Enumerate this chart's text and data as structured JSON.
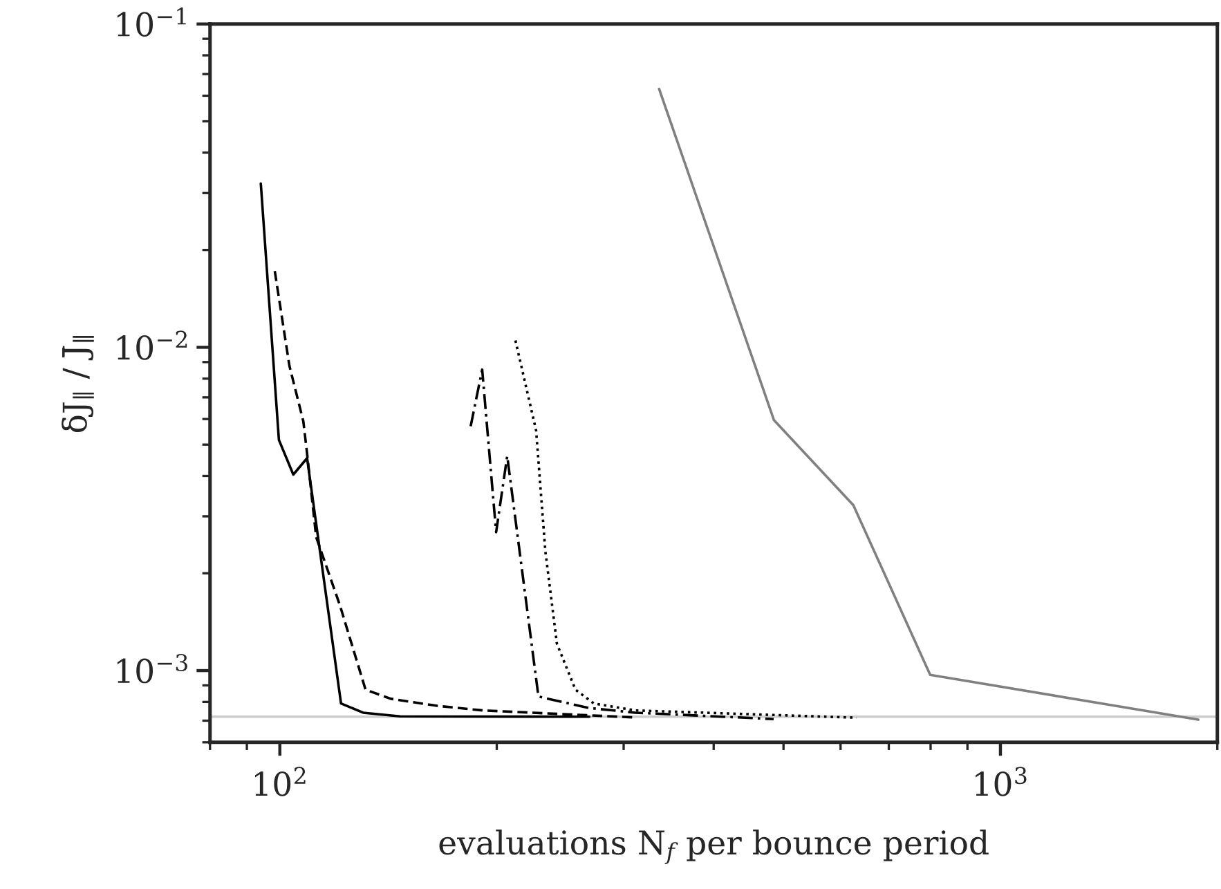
{
  "chart_data": {
    "type": "line",
    "log": "xy",
    "grid": false,
    "legend": false,
    "xlabel": "evaluations N$_{f}$ per bounce period",
    "ylabel": "δJ$_{∥}$ / J̄$_{∥}$",
    "xlim": [
      80,
      2000
    ],
    "ylim": [
      0.0006,
      0.1
    ],
    "xticks": [
      {
        "value": 100,
        "label": "10$^{2}$"
      },
      {
        "value": 1000,
        "label": "10$^{3}$"
      }
    ],
    "yticks": [
      {
        "value": 0.001,
        "label": "10$^{−3}$"
      },
      {
        "value": 0.01,
        "label": "10$^{−2}$"
      },
      {
        "value": 0.1,
        "label": "10$^{−1}$"
      }
    ],
    "ref_lines": [
      {
        "axis": "y",
        "value": 0.00072,
        "label": null,
        "color": "#cccccc"
      }
    ],
    "series": [
      {
        "color": "#000000",
        "line_style": "solid",
        "x": [
          94.1,
          99.7,
          104.4,
          109.1,
          121.6,
          130.5,
          146.8,
          268.8
        ],
        "values": [
          0.0321,
          0.00517,
          0.00404,
          0.00454,
          0.000791,
          0.000741,
          0.000722,
          0.00072
        ]
      },
      {
        "color": "#000000",
        "line_style": "dashed",
        "x": [
          98.4,
          103.1,
          107.8,
          109.1,
          112.3,
          121.3,
          131.5,
          142.6,
          165.3,
          191.3,
          308.7
        ],
        "values": [
          0.0172,
          0.00877,
          0.0059,
          0.00469,
          0.00259,
          0.00158,
          0.000873,
          0.000818,
          0.000778,
          0.000753,
          0.000717
        ]
      },
      {
        "color": "#000000",
        "line_style": "dashdot",
        "x": [
          184,
          190.9,
          199.6,
          206.8,
          228.5,
          268.8,
          311.4,
          484.5
        ],
        "values": [
          0.0057,
          0.00853,
          0.00268,
          0.00461,
          0.000831,
          0.000766,
          0.000741,
          0.000708
        ]
      },
      {
        "color": "#000000",
        "line_style": "dotted",
        "x": [
          212.3,
          226.8,
          233.6,
          242.4,
          257.2,
          272.8,
          311.4,
          631.6
        ],
        "values": [
          0.0105,
          0.00553,
          0.00234,
          0.00121,
          0.000873,
          0.000791,
          0.000753,
          0.000715
        ]
      },
      {
        "color": "#808080",
        "line_style": "solid",
        "x": [
          336,
          485,
          625,
          799,
          1882
        ],
        "values": [
          0.063,
          0.00595,
          0.00325,
          0.00097,
          0.000705
        ]
      }
    ]
  }
}
